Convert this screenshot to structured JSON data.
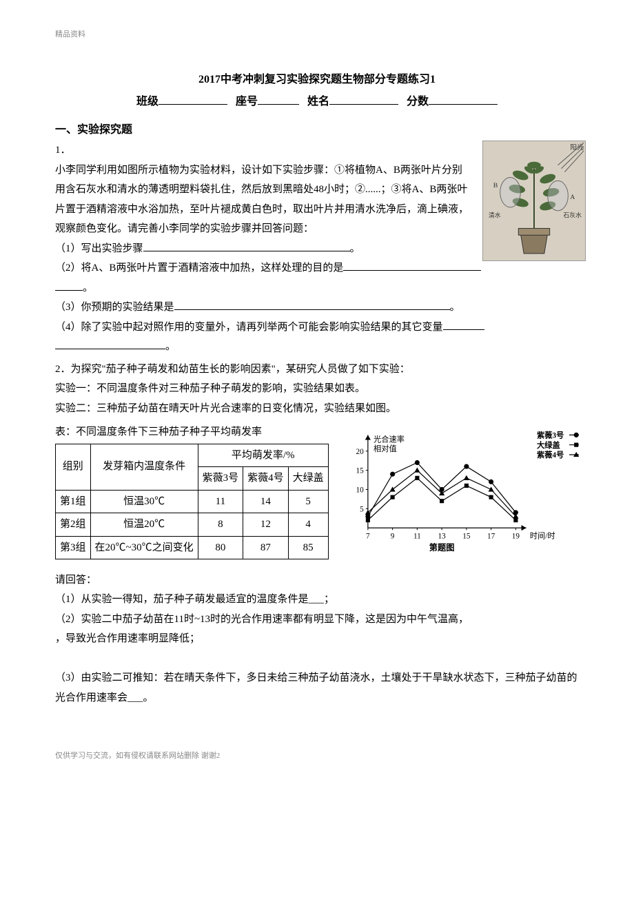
{
  "watermark_top": "精品资料",
  "title": "2017中考冲刺复习实验探究题生物部分专题练习1",
  "subtitle_labels": {
    "class": "班级",
    "seat": "座号",
    "name": "姓名",
    "score": "分数"
  },
  "section1": "一、实验探究题",
  "q1": {
    "num": "1．",
    "para": "小李同学利用如图所示植物为实验材料，设计如下实验步骤：①将植物A、B两张叶片分别用含石灰水和清水的薄透明塑料袋扎住，然后放到黑暗处48小时；②......；③将A、B两张叶片置于酒精溶液中水浴加热，至叶片褪成黄白色时，取出叶片并用清水洗净后，滴上碘液，观察颜色变化。请完善小李同学的实验步骤并回答问题：",
    "p1_label": "（1）写出实验步骤",
    "p2_label": "（2）将A、B两张叶片置于酒精溶液中加热，这样处理的目的是",
    "p3_label": "（3）你预期的实验结果是",
    "p4_label": "（4）除了实验中起对照作用的变量外，请再列举两个可能会影响实验结果的其它变量",
    "plant_labels": {
      "sun": "阳光",
      "leafB": "B",
      "leafA": "A",
      "water": "清水",
      "lime": "石灰水"
    }
  },
  "q2": {
    "num": "2．",
    "intro": "为探究\"茄子种子萌发和幼苗生长的影响因素\"，某研究人员做了如下实验：",
    "exp1": "实验一：不同温度条件对三种茄子种子萌发的影响，实验结果如表。",
    "exp2": "实验二：三种茄子幼苗在晴天叶片光合速率的日变化情况，实验结果如图。",
    "table_caption": "表：不同温度条件下三种茄子种子平均萌发率",
    "table": {
      "col_group": "组别",
      "col_temp": "发芽箱内温度条件",
      "col_avg_header": "平均萌发率/%",
      "col_v3": "紫薇3号",
      "col_v4": "紫薇4号",
      "col_dg": "大绿盖",
      "rows": [
        {
          "group": "第1组",
          "temp": "恒温30℃",
          "v3": "11",
          "v4": "14",
          "dg": "5"
        },
        {
          "group": "第2组",
          "temp": "恒温20℃",
          "v3": "8",
          "v4": "12",
          "dg": "4"
        },
        {
          "group": "第3组",
          "temp": "在20℃~30℃之间变化",
          "v3": "80",
          "v4": "87",
          "dg": "85"
        }
      ]
    },
    "chart": {
      "ylabel_l1": "光合速率",
      "ylabel_l2": "相对值",
      "legend": [
        {
          "label": "紫薇3号",
          "marker": "circle",
          "color": "#000000"
        },
        {
          "label": "大绿盖",
          "marker": "square",
          "color": "#000000"
        },
        {
          "label": "紫薇4号",
          "marker": "triangle",
          "color": "#000000"
        }
      ],
      "yticks": [
        5,
        10,
        15,
        20
      ],
      "xticks": [
        7,
        9,
        11,
        13,
        15,
        17,
        19
      ],
      "xlabel": "时间/时",
      "caption": "第题图",
      "series": {
        "zw3": [
          [
            7,
            3
          ],
          [
            9,
            14
          ],
          [
            11,
            17
          ],
          [
            13,
            10
          ],
          [
            15,
            16
          ],
          [
            17,
            12
          ],
          [
            19,
            4
          ]
        ],
        "dlg": [
          [
            7,
            2
          ],
          [
            9,
            8
          ],
          [
            11,
            13
          ],
          [
            13,
            7
          ],
          [
            15,
            11
          ],
          [
            17,
            8
          ],
          [
            19,
            2
          ]
        ],
        "zw4": [
          [
            7,
            4
          ],
          [
            9,
            10
          ],
          [
            11,
            15
          ],
          [
            13,
            9
          ],
          [
            15,
            13
          ],
          [
            17,
            10
          ],
          [
            19,
            3
          ]
        ]
      },
      "axis_color": "#000000",
      "background": "#ffffff",
      "line_width": 1.2
    },
    "qa": "请回答：",
    "p1": "（1）从实验一得知，茄子种子萌发最适宜的温度条件是___；",
    "p2_a": "（2）实验二中茄子幼苗在11时~13时的光合作用速率都有明显下降，这是因为中午气温高，",
    "p2_b": "，导致光合作用速率明显降低；",
    "p3": "（3）由实验二可推知：若在晴天条件下，多日未给三种茄子幼苗浇水，土壤处于干旱缺水状态下，三种茄子幼苗的光合作用速率会___。"
  },
  "footer": "仅供学习与交流，如有侵权请联系网站删除 谢谢2"
}
